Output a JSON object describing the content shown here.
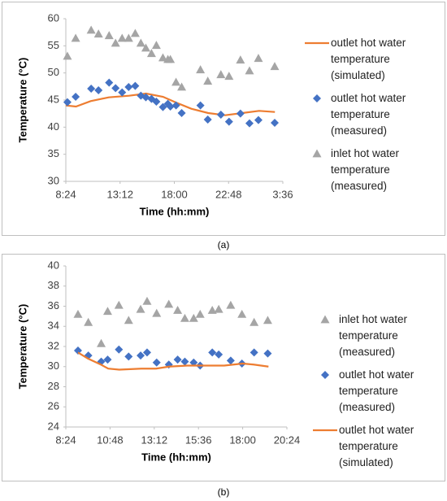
{
  "chart_data": [
    {
      "type": "scatter",
      "caption": "(a)",
      "x_label": "Time (hh:mm)",
      "y_label": "Temperature (°C)",
      "xlim": [
        8.4,
        27.6
      ],
      "xticks": [
        {
          "value": 8.4,
          "label": "8:24"
        },
        {
          "value": 13.2,
          "label": "13:12"
        },
        {
          "value": 18.0,
          "label": "18:00"
        },
        {
          "value": 22.8,
          "label": "22:48"
        },
        {
          "value": 27.6,
          "label": "3:36"
        }
      ],
      "ylim": [
        30,
        60
      ],
      "yticks": [
        30,
        35,
        40,
        45,
        50,
        55,
        60
      ],
      "legend": "right",
      "series": [
        {
          "name": "outlet hot water temperature (simulated)",
          "color": "#ed7d31",
          "style": "line",
          "x": [
            8.4,
            9.3,
            10.6,
            12.2,
            14.0,
            15.5,
            17.0,
            18.2,
            19.5,
            21.0,
            22.5,
            24.0,
            25.5,
            26.9
          ],
          "values": [
            44.0,
            43.8,
            44.8,
            45.5,
            45.8,
            46.2,
            45.6,
            44.5,
            43.4,
            42.6,
            42.2,
            42.6,
            43.0,
            42.8
          ]
        },
        {
          "name": "outlet hot water temperature (measured)",
          "color": "#4472c4",
          "style": "diamond",
          "x": [
            8.54,
            9.27,
            10.64,
            11.29,
            12.23,
            12.8,
            13.38,
            13.96,
            14.54,
            15.04,
            15.48,
            15.98,
            16.41,
            16.99,
            17.43,
            17.65,
            18.15,
            18.65,
            20.31,
            20.96,
            22.12,
            22.84,
            23.85,
            24.65,
            25.44,
            26.88
          ],
          "values": [
            44.6,
            45.6,
            47.1,
            46.8,
            48.2,
            47.2,
            46.4,
            47.4,
            47.6,
            45.8,
            45.5,
            45.2,
            44.7,
            43.7,
            44.3,
            43.8,
            44.0,
            42.6,
            44.0,
            41.4,
            42.3,
            41.0,
            42.5,
            40.7,
            41.3,
            40.8
          ]
        },
        {
          "name": "inlet hot water temperature (measured)",
          "color": "#a5a5a5",
          "style": "triangle",
          "x": [
            8.54,
            9.27,
            10.64,
            11.29,
            12.23,
            12.8,
            13.38,
            13.96,
            14.54,
            15.04,
            15.48,
            15.98,
            16.41,
            16.99,
            17.43,
            17.65,
            18.15,
            18.65,
            20.31,
            20.96,
            22.12,
            22.84,
            23.85,
            24.65,
            25.44,
            26.88
          ],
          "values": [
            53.1,
            56.4,
            57.9,
            57.2,
            56.9,
            55.5,
            56.4,
            56.4,
            57.3,
            55.5,
            54.6,
            53.6,
            55.1,
            52.8,
            52.5,
            52.5,
            48.3,
            47.4,
            50.6,
            48.5,
            49.7,
            49.4,
            52.4,
            50.4,
            52.7,
            51.2
          ]
        }
      ]
    },
    {
      "type": "scatter",
      "caption": "(b)",
      "x_label": "Time (hh:mm)",
      "y_label": "Temperature (°C)",
      "xlim": [
        8.4,
        20.4
      ],
      "xticks": [
        {
          "value": 8.4,
          "label": "8:24"
        },
        {
          "value": 10.8,
          "label": "10:48"
        },
        {
          "value": 13.2,
          "label": "13:12"
        },
        {
          "value": 15.6,
          "label": "15:36"
        },
        {
          "value": 18.0,
          "label": "18:00"
        },
        {
          "value": 20.4,
          "label": "20:24"
        }
      ],
      "ylim": [
        24,
        40
      ],
      "yticks": [
        24,
        26,
        28,
        30,
        32,
        34,
        36,
        38,
        40
      ],
      "legend": "right",
      "series": [
        {
          "name": "inlet hot water temperature (measured)",
          "color": "#a5a5a5",
          "style": "triangle",
          "x": [
            9.06,
            9.62,
            10.32,
            10.67,
            11.28,
            11.81,
            12.46,
            12.81,
            13.33,
            13.99,
            14.47,
            14.86,
            15.34,
            15.69,
            16.35,
            16.7,
            17.35,
            17.96,
            18.62,
            19.36
          ],
          "values": [
            35.2,
            34.4,
            32.3,
            35.5,
            36.1,
            34.6,
            35.7,
            36.5,
            35.3,
            36.2,
            35.6,
            34.8,
            34.8,
            35.2,
            35.6,
            35.7,
            36.1,
            35.2,
            34.4,
            34.6
          ]
        },
        {
          "name": "outlet hot water temperature (measured)",
          "color": "#4472c4",
          "style": "diamond",
          "x": [
            9.06,
            9.62,
            10.32,
            10.67,
            11.28,
            11.81,
            12.46,
            12.81,
            13.33,
            13.99,
            14.47,
            14.86,
            15.34,
            15.69,
            16.35,
            16.7,
            17.35,
            17.96,
            18.62,
            19.36
          ],
          "values": [
            31.6,
            31.1,
            30.5,
            30.7,
            31.7,
            31.0,
            31.1,
            31.4,
            30.4,
            30.2,
            30.7,
            30.5,
            30.4,
            30.1,
            31.4,
            31.2,
            30.6,
            30.3,
            31.4,
            31.3
          ]
        },
        {
          "name": "outlet hot water temperature (simulated)",
          "color": "#ed7d31",
          "style": "line",
          "x": [
            9.06,
            9.6,
            10.3,
            10.7,
            11.3,
            12.5,
            13.3,
            14.0,
            15.0,
            16.0,
            17.0,
            18.0,
            18.6,
            19.4
          ],
          "values": [
            31.4,
            30.8,
            30.2,
            29.8,
            29.7,
            29.8,
            29.8,
            30.0,
            30.1,
            30.1,
            30.1,
            30.3,
            30.2,
            30.0
          ]
        }
      ]
    }
  ]
}
